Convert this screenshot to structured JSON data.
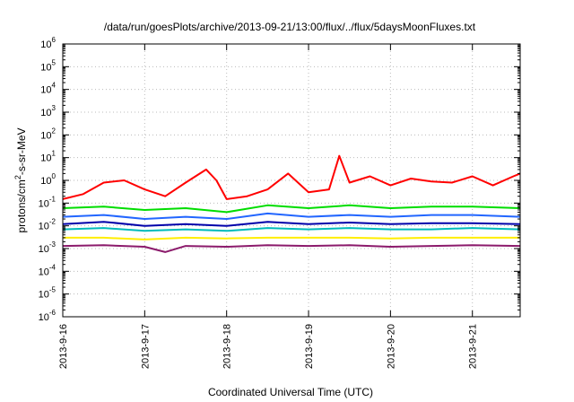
{
  "chart_data": {
    "type": "line",
    "title": "/data/run/goesPlots/archive/2013-09-21/13:00/flux/../flux/5daysMoonFluxes.txt",
    "xlabel": "Coordinated Universal Time (UTC)",
    "ylabel": "protons/cm2-s-sr-MeV",
    "yscale": "log",
    "ylim": [
      1e-06,
      1000000.0
    ],
    "xlim": [
      "2013-09-16",
      "2013-09-21 14:00"
    ],
    "grid": true,
    "x_ticks": [
      "2013-9-16",
      "2013-9-17",
      "2013-9-18",
      "2013-9-19",
      "2013-9-20",
      "2013-9-21"
    ],
    "y_ticks": [
      {
        "base": "10",
        "exp": "-6"
      },
      {
        "base": "10",
        "exp": "-5"
      },
      {
        "base": "10",
        "exp": "-4"
      },
      {
        "base": "10",
        "exp": "-3"
      },
      {
        "base": "10",
        "exp": "-2"
      },
      {
        "base": "10",
        "exp": "-1"
      },
      {
        "base": "10",
        "exp": "0"
      },
      {
        "base": "10",
        "exp": "1"
      },
      {
        "base": "10",
        "exp": "2"
      },
      {
        "base": "10",
        "exp": "3"
      },
      {
        "base": "10",
        "exp": "4"
      },
      {
        "base": "10",
        "exp": "5"
      },
      {
        "base": "10",
        "exp": "6"
      }
    ],
    "series": [
      {
        "color": "#ff0000",
        "x": [
          "2013-09-16 00:00",
          "2013-09-16 06:00",
          "2013-09-16 12:00",
          "2013-09-16 18:00",
          "2013-09-17 00:00",
          "2013-09-17 06:00",
          "2013-09-17 12:00",
          "2013-09-17 18:00",
          "2013-09-17 21:00",
          "2013-09-18 00:00",
          "2013-09-18 06:00",
          "2013-09-18 12:00",
          "2013-09-18 18:00",
          "2013-09-19 00:00",
          "2013-09-19 06:00",
          "2013-09-19 09:00",
          "2013-09-19 12:00",
          "2013-09-19 18:00",
          "2013-09-20 00:00",
          "2013-09-20 06:00",
          "2013-09-20 12:00",
          "2013-09-20 18:00",
          "2013-09-21 00:00",
          "2013-09-21 06:00",
          "2013-09-21 12:00",
          "2013-09-21 14:00"
        ],
        "values": [
          0.15,
          0.25,
          0.8,
          1.0,
          0.4,
          0.2,
          0.8,
          3.0,
          1.0,
          0.15,
          0.2,
          0.4,
          2.0,
          0.3,
          0.4,
          12.0,
          0.8,
          1.5,
          0.6,
          1.2,
          0.9,
          0.8,
          1.5,
          0.6,
          1.5,
          2.0
        ]
      },
      {
        "color": "#00dd00",
        "x": [
          "2013-09-16 00:00",
          "2013-09-16 12:00",
          "2013-09-17 00:00",
          "2013-09-17 12:00",
          "2013-09-18 00:00",
          "2013-09-18 12:00",
          "2013-09-19 00:00",
          "2013-09-19 12:00",
          "2013-09-20 00:00",
          "2013-09-20 12:00",
          "2013-09-21 00:00",
          "2013-09-21 14:00"
        ],
        "values": [
          0.06,
          0.07,
          0.05,
          0.06,
          0.04,
          0.08,
          0.06,
          0.08,
          0.06,
          0.07,
          0.07,
          0.06
        ]
      },
      {
        "color": "#2266ff",
        "x": [
          "2013-09-16 00:00",
          "2013-09-16 12:00",
          "2013-09-17 00:00",
          "2013-09-17 12:00",
          "2013-09-18 00:00",
          "2013-09-18 12:00",
          "2013-09-19 00:00",
          "2013-09-19 12:00",
          "2013-09-20 00:00",
          "2013-09-20 12:00",
          "2013-09-21 00:00",
          "2013-09-21 14:00"
        ],
        "values": [
          0.025,
          0.03,
          0.02,
          0.025,
          0.02,
          0.035,
          0.025,
          0.03,
          0.025,
          0.03,
          0.03,
          0.025
        ]
      },
      {
        "color": "#0000aa",
        "x": [
          "2013-09-16 00:00",
          "2013-09-16 12:00",
          "2013-09-17 00:00",
          "2013-09-17 12:00",
          "2013-09-18 00:00",
          "2013-09-18 12:00",
          "2013-09-19 00:00",
          "2013-09-19 12:00",
          "2013-09-20 00:00",
          "2013-09-20 12:00",
          "2013-09-21 00:00",
          "2013-09-21 14:00"
        ],
        "values": [
          0.012,
          0.015,
          0.01,
          0.012,
          0.01,
          0.015,
          0.012,
          0.014,
          0.012,
          0.013,
          0.013,
          0.012
        ]
      },
      {
        "color": "#00bbbb",
        "x": [
          "2013-09-16 00:00",
          "2013-09-16 12:00",
          "2013-09-17 00:00",
          "2013-09-17 12:00",
          "2013-09-18 00:00",
          "2013-09-18 12:00",
          "2013-09-19 00:00",
          "2013-09-19 12:00",
          "2013-09-20 00:00",
          "2013-09-20 12:00",
          "2013-09-21 00:00",
          "2013-09-21 14:00"
        ],
        "values": [
          0.007,
          0.008,
          0.006,
          0.007,
          0.006,
          0.008,
          0.007,
          0.008,
          0.007,
          0.007,
          0.008,
          0.007
        ]
      },
      {
        "color": "#ffee00",
        "x": [
          "2013-09-16 00:00",
          "2013-09-16 12:00",
          "2013-09-17 00:00",
          "2013-09-17 12:00",
          "2013-09-18 00:00",
          "2013-09-18 12:00",
          "2013-09-19 00:00",
          "2013-09-19 12:00",
          "2013-09-20 00:00",
          "2013-09-20 12:00",
          "2013-09-21 00:00",
          "2013-09-21 14:00"
        ],
        "values": [
          0.003,
          0.003,
          0.0025,
          0.003,
          0.0028,
          0.003,
          0.003,
          0.003,
          0.0028,
          0.003,
          0.003,
          0.003
        ]
      },
      {
        "color": "#8b1a6b",
        "x": [
          "2013-09-16 00:00",
          "2013-09-16 12:00",
          "2013-09-17 00:00",
          "2013-09-17 06:00",
          "2013-09-17 12:00",
          "2013-09-18 00:00",
          "2013-09-18 12:00",
          "2013-09-19 00:00",
          "2013-09-19 12:00",
          "2013-09-20 00:00",
          "2013-09-20 12:00",
          "2013-09-21 00:00",
          "2013-09-21 14:00"
        ],
        "values": [
          0.0013,
          0.0014,
          0.0012,
          0.0007,
          0.0013,
          0.0012,
          0.0014,
          0.0013,
          0.0014,
          0.0012,
          0.0013,
          0.0014,
          0.0013
        ]
      }
    ]
  }
}
